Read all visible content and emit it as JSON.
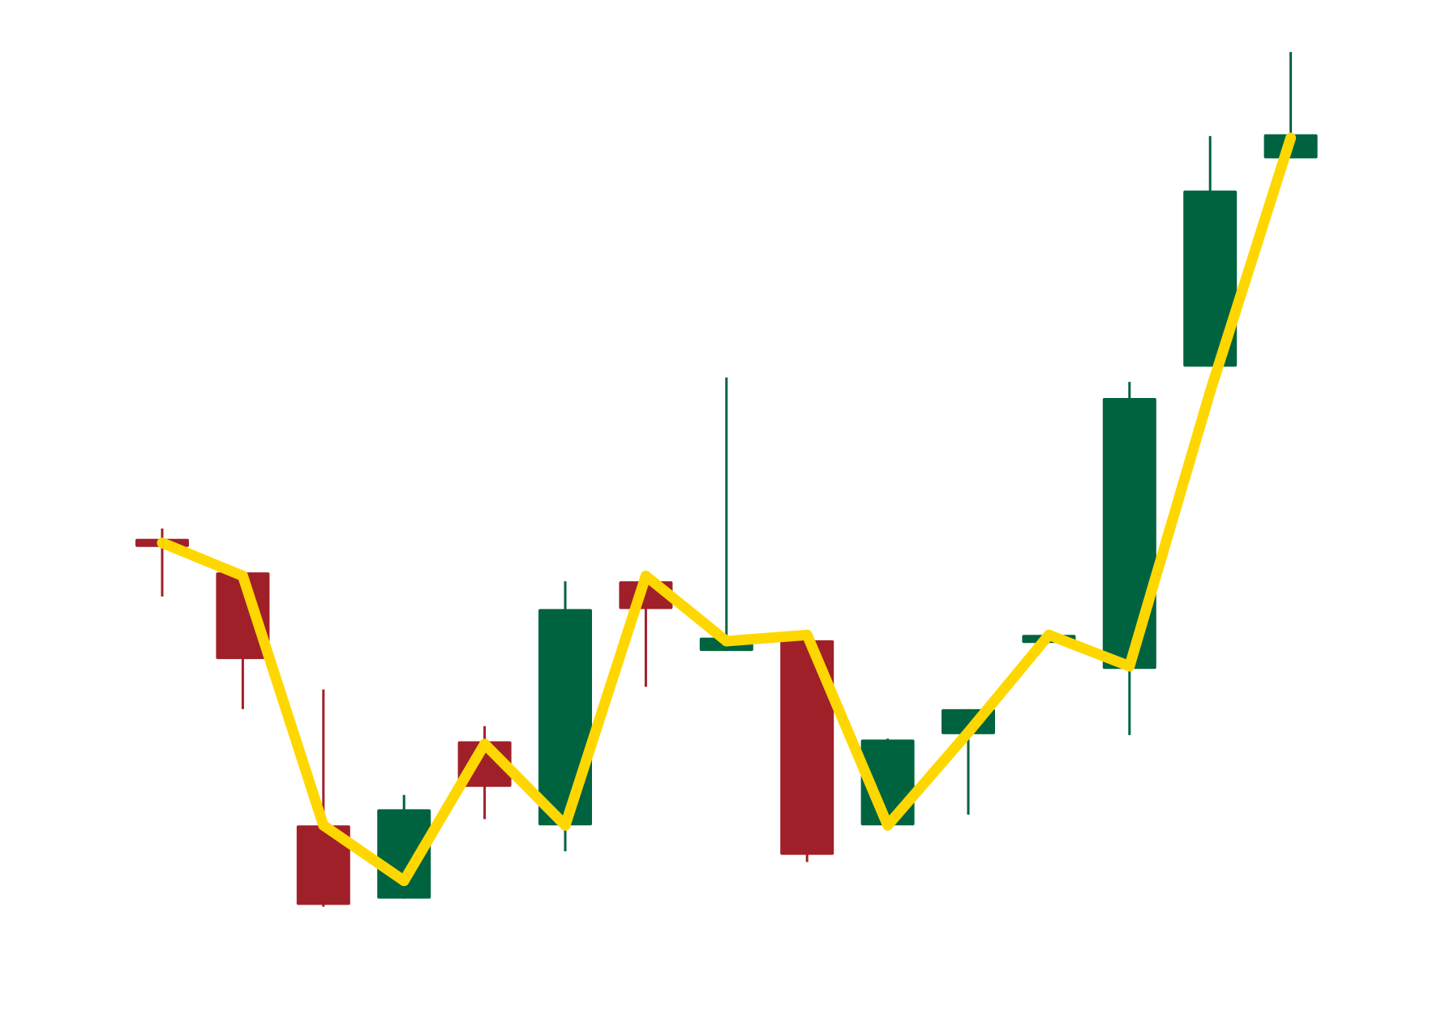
{
  "chart_data": {
    "type": "candlestick",
    "title": "",
    "xlabel": "",
    "ylabel": "",
    "axes_visible": false,
    "grid": false,
    "legend": "none",
    "ylim": [
      0,
      100
    ],
    "colors": {
      "up": "#006340",
      "down": "#A0202A",
      "line": "#FFD700",
      "background": "#FFFFFF"
    },
    "candles": [
      {
        "open": 47.2,
        "high": 48.5,
        "low": 40.9,
        "close": 46.6
      },
      {
        "open": 43.6,
        "high": 43.6,
        "low": 28.3,
        "close": 33.9
      },
      {
        "open": 15.3,
        "high": 30.5,
        "low": 6.2,
        "close": 6.4
      },
      {
        "open": 7.1,
        "high": 18.7,
        "low": 7.1,
        "close": 17.1
      },
      {
        "open": 24.7,
        "high": 26.4,
        "low": 16.0,
        "close": 19.6
      },
      {
        "open": 15.3,
        "high": 42.6,
        "low": 12.4,
        "close": 39.5
      },
      {
        "open": 42.6,
        "high": 42.6,
        "low": 30.8,
        "close": 39.5
      },
      {
        "open": 34.8,
        "high": 65.4,
        "low": 34.8,
        "close": 36.3
      },
      {
        "open": 36.0,
        "high": 36.0,
        "low": 11.2,
        "close": 12.0
      },
      {
        "open": 15.3,
        "high": 25.0,
        "low": 15.3,
        "close": 24.9
      },
      {
        "open": 25.5,
        "high": 28.3,
        "low": 16.5,
        "close": 28.3
      },
      {
        "open": 35.8,
        "high": 37.0,
        "low": 35.8,
        "close": 36.5
      },
      {
        "open": 32.8,
        "high": 64.9,
        "low": 25.4,
        "close": 63.1
      },
      {
        "open": 66.6,
        "high": 92.4,
        "low": 66.6,
        "close": 86.3
      },
      {
        "open": 89.9,
        "high": 101.8,
        "low": 89.9,
        "close": 92.6
      }
    ],
    "line": [
      46.9,
      43.2,
      15.3,
      9.1,
      24.4,
      15.3,
      43.2,
      35.9,
      36.6,
      15.3,
      25.7,
      36.6,
      33.1,
      63.8,
      92.2
    ]
  }
}
